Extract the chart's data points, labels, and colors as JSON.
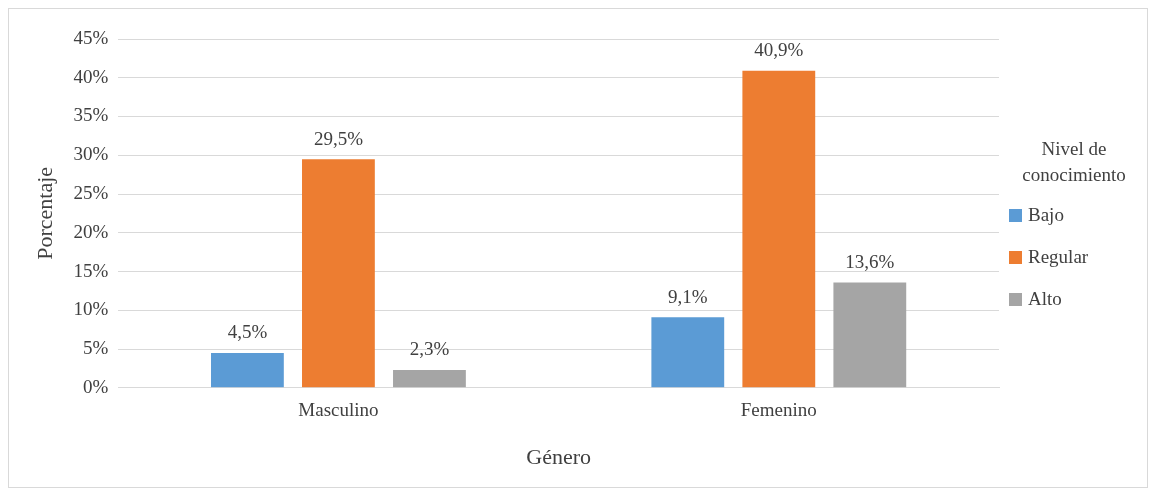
{
  "chart_data": {
    "type": "bar",
    "xlabel": "Género",
    "ylabel": "Porcentaje",
    "legend_title": "Nivel de conocimiento",
    "categories": [
      "Masculino",
      "Femenino"
    ],
    "series": [
      {
        "name": "Bajo",
        "color": "#5b9bd5",
        "values": [
          4.5,
          9.1
        ],
        "value_labels": [
          "4,5%",
          "9,1%"
        ]
      },
      {
        "name": "Regular",
        "color": "#ed7d31",
        "values": [
          29.5,
          40.9
        ],
        "value_labels": [
          "29,5%",
          "40,9%"
        ]
      },
      {
        "name": "Alto",
        "color": "#a5a5a5",
        "values": [
          2.3,
          13.6
        ],
        "value_labels": [
          "2,3%",
          "13,6%"
        ]
      }
    ],
    "ylim": [
      0,
      45
    ],
    "yticks": [
      {
        "value": 0,
        "label": "0%"
      },
      {
        "value": 5,
        "label": "5%"
      },
      {
        "value": 10,
        "label": "10%"
      },
      {
        "value": 15,
        "label": "15%"
      },
      {
        "value": 20,
        "label": "20%"
      },
      {
        "value": 25,
        "label": "25%"
      },
      {
        "value": 30,
        "label": "30%"
      },
      {
        "value": 35,
        "label": "35%"
      },
      {
        "value": 40,
        "label": "40%"
      },
      {
        "value": 45,
        "label": "45%"
      }
    ],
    "grid": "y",
    "legend": "right"
  }
}
